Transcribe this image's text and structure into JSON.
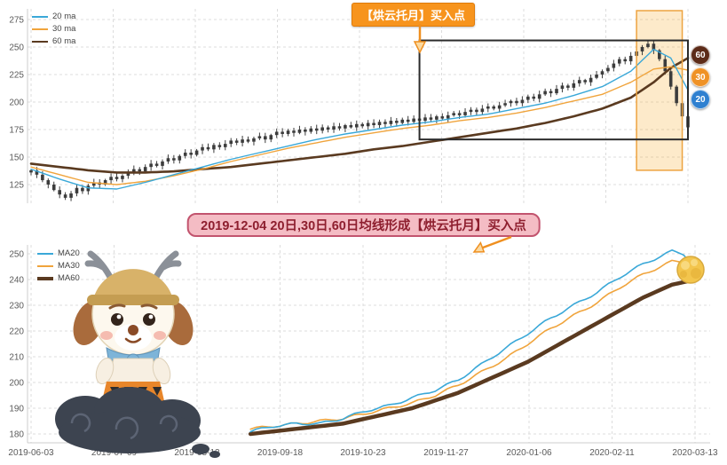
{
  "page": {
    "background": "#ffffff"
  },
  "top_panel": {
    "callout": {
      "text": "【烘云托月】买入点",
      "bg": "#f7941d",
      "text_color": "#ffffff"
    },
    "badges": [
      {
        "label": "60",
        "color": "#5c2b18"
      },
      {
        "label": "30",
        "color": "#ef9226"
      },
      {
        "label": "20",
        "color": "#2f80d0"
      }
    ]
  },
  "banner": {
    "text": "2019-12-04 20日,30日,60日均线形成【烘云托月】买入点",
    "bg": "#f4bcc4",
    "border": "#c2546e",
    "text_color": "#8e1f2f"
  },
  "chart_data": [
    {
      "type": "candlestick",
      "title": "",
      "ylim": [
        110,
        285
      ],
      "yticks": [
        275,
        250,
        225,
        200,
        175,
        150,
        125
      ],
      "x_range": [
        "2019-06-03",
        "2020-03-13"
      ],
      "grid": true,
      "legend_position": "top-left",
      "closes": [
        138,
        134,
        129,
        125,
        120,
        116,
        113,
        117,
        122,
        119,
        124,
        127,
        125,
        129,
        132,
        130,
        133,
        136,
        139,
        137,
        141,
        144,
        142,
        146,
        149,
        147,
        151,
        154,
        152,
        156,
        159,
        157,
        161,
        159,
        162,
        165,
        163,
        166,
        164,
        167,
        169,
        166,
        170,
        173,
        171,
        174,
        172,
        175,
        173,
        176,
        174,
        177,
        175,
        178,
        176,
        179,
        177,
        180,
        178,
        181,
        179,
        182,
        180,
        183,
        181,
        184,
        182,
        185,
        183,
        186,
        184,
        187,
        185,
        188,
        190,
        188,
        191,
        193,
        191,
        194,
        196,
        194,
        197,
        199,
        201,
        199,
        202,
        205,
        203,
        207,
        210,
        208,
        212,
        215,
        213,
        217,
        220,
        218,
        222,
        225,
        228,
        231,
        235,
        239,
        237,
        242,
        246,
        250,
        253,
        247,
        239,
        228,
        214,
        199,
        187,
        177
      ],
      "series": [
        {
          "name": "20 ma",
          "color": "#3aa8d8",
          "width": 1.4,
          "points": [
            [
              0,
              139
            ],
            [
              5,
              130
            ],
            [
              10,
              122
            ],
            [
              15,
              121
            ],
            [
              20,
              127
            ],
            [
              25,
              134
            ],
            [
              30,
              141
            ],
            [
              35,
              148
            ],
            [
              40,
              154
            ],
            [
              45,
              160
            ],
            [
              50,
              166
            ],
            [
              55,
              171
            ],
            [
              60,
              175
            ],
            [
              65,
              179
            ],
            [
              70,
              182
            ],
            [
              75,
              186
            ],
            [
              80,
              189
            ],
            [
              85,
              194
            ],
            [
              90,
              199
            ],
            [
              95,
              206
            ],
            [
              100,
              214
            ],
            [
              105,
              228
            ],
            [
              109,
              248
            ],
            [
              112,
              240
            ],
            [
              115,
              211
            ]
          ]
        },
        {
          "name": "30 ma",
          "color": "#f0a43c",
          "width": 1.4,
          "points": [
            [
              0,
              141
            ],
            [
              5,
              134
            ],
            [
              10,
              127
            ],
            [
              15,
              125
            ],
            [
              20,
              128
            ],
            [
              25,
              133
            ],
            [
              30,
              139
            ],
            [
              35,
              146
            ],
            [
              40,
              152
            ],
            [
              45,
              158
            ],
            [
              50,
              163
            ],
            [
              55,
              168
            ],
            [
              60,
              172
            ],
            [
              65,
              176
            ],
            [
              70,
              179
            ],
            [
              75,
              183
            ],
            [
              80,
              186
            ],
            [
              85,
              190
            ],
            [
              90,
              195
            ],
            [
              95,
              201
            ],
            [
              100,
              207
            ],
            [
              105,
              218
            ],
            [
              109,
              230
            ],
            [
              112,
              232
            ],
            [
              115,
              229
            ]
          ]
        },
        {
          "name": "60 ma",
          "color": "#5a3a20",
          "width": 2.6,
          "points": [
            [
              0,
              144
            ],
            [
              5,
              141
            ],
            [
              10,
              138
            ],
            [
              15,
              136
            ],
            [
              20,
              136
            ],
            [
              25,
              137
            ],
            [
              30,
              139
            ],
            [
              35,
              141
            ],
            [
              40,
              144
            ],
            [
              45,
              147
            ],
            [
              50,
              150
            ],
            [
              55,
              153
            ],
            [
              60,
              157
            ],
            [
              65,
              160
            ],
            [
              70,
              164
            ],
            [
              75,
              168
            ],
            [
              80,
              172
            ],
            [
              85,
              176
            ],
            [
              90,
              181
            ],
            [
              95,
              187
            ],
            [
              100,
              194
            ],
            [
              105,
              204
            ],
            [
              109,
              218
            ],
            [
              112,
              231
            ],
            [
              115,
              240
            ]
          ]
        }
      ],
      "annotations": {
        "rect": {
          "from_idx": 68,
          "to_idx": 115,
          "v_top": 256,
          "v_bottom": 166
        },
        "band": {
          "from_idx": 106,
          "to_idx": 114,
          "v_bottom": 138
        }
      }
    },
    {
      "type": "line",
      "title": "",
      "ylim": [
        176,
        253
      ],
      "yticks": [
        250,
        240,
        230,
        220,
        210,
        200,
        190,
        180
      ],
      "x_tick_labels": [
        "2019-06-03",
        "2019-07-09",
        "2019-08-13",
        "2019-09-18",
        "2019-10-23",
        "2019-11-27",
        "2020-01-06",
        "2020-02-11",
        "2020-03-13"
      ],
      "grid": true,
      "legend_position": "top-left",
      "series": [
        {
          "name": "MA20",
          "color": "#3aa8d8",
          "width": 1.6,
          "points": [
            [
              38,
              181
            ],
            [
              42,
              183
            ],
            [
              46,
              184
            ],
            [
              50,
              184
            ],
            [
              54,
              186
            ],
            [
              58,
              189
            ],
            [
              62,
              191
            ],
            [
              66,
              194
            ],
            [
              70,
              197
            ],
            [
              74,
              201
            ],
            [
              78,
              207
            ],
            [
              82,
              213
            ],
            [
              86,
              219
            ],
            [
              90,
              225
            ],
            [
              94,
              230
            ],
            [
              98,
              235
            ],
            [
              102,
              241
            ],
            [
              106,
              246
            ],
            [
              109,
              249
            ],
            [
              111,
              251
            ],
            [
              113,
              250
            ],
            [
              115,
              245
            ]
          ]
        },
        {
          "name": "MA30",
          "color": "#f0a43c",
          "width": 1.6,
          "points": [
            [
              38,
              182
            ],
            [
              42,
              183
            ],
            [
              46,
              184
            ],
            [
              50,
              185
            ],
            [
              54,
              186
            ],
            [
              58,
              188
            ],
            [
              62,
              190
            ],
            [
              66,
              192
            ],
            [
              70,
              195
            ],
            [
              74,
              199
            ],
            [
              78,
              204
            ],
            [
              82,
              209
            ],
            [
              86,
              215
            ],
            [
              90,
              221
            ],
            [
              94,
              226
            ],
            [
              98,
              231
            ],
            [
              102,
              237
            ],
            [
              106,
              242
            ],
            [
              109,
              245
            ],
            [
              111,
              247
            ],
            [
              113,
              247
            ],
            [
              115,
              246
            ]
          ]
        },
        {
          "name": "MA60",
          "color": "#5a3a20",
          "width": 4.5,
          "points": [
            [
              38,
              180
            ],
            [
              42,
              181
            ],
            [
              46,
              182
            ],
            [
              50,
              183
            ],
            [
              54,
              184
            ],
            [
              58,
              186
            ],
            [
              62,
              188
            ],
            [
              66,
              190
            ],
            [
              70,
              193
            ],
            [
              74,
              196
            ],
            [
              78,
              200
            ],
            [
              82,
              204
            ],
            [
              86,
              208
            ],
            [
              90,
              213
            ],
            [
              94,
              218
            ],
            [
              98,
              223
            ],
            [
              102,
              228
            ],
            [
              106,
              233
            ],
            [
              109,
              236
            ],
            [
              111,
              238
            ],
            [
              113,
              239
            ],
            [
              115,
              240
            ]
          ]
        }
      ]
    }
  ]
}
